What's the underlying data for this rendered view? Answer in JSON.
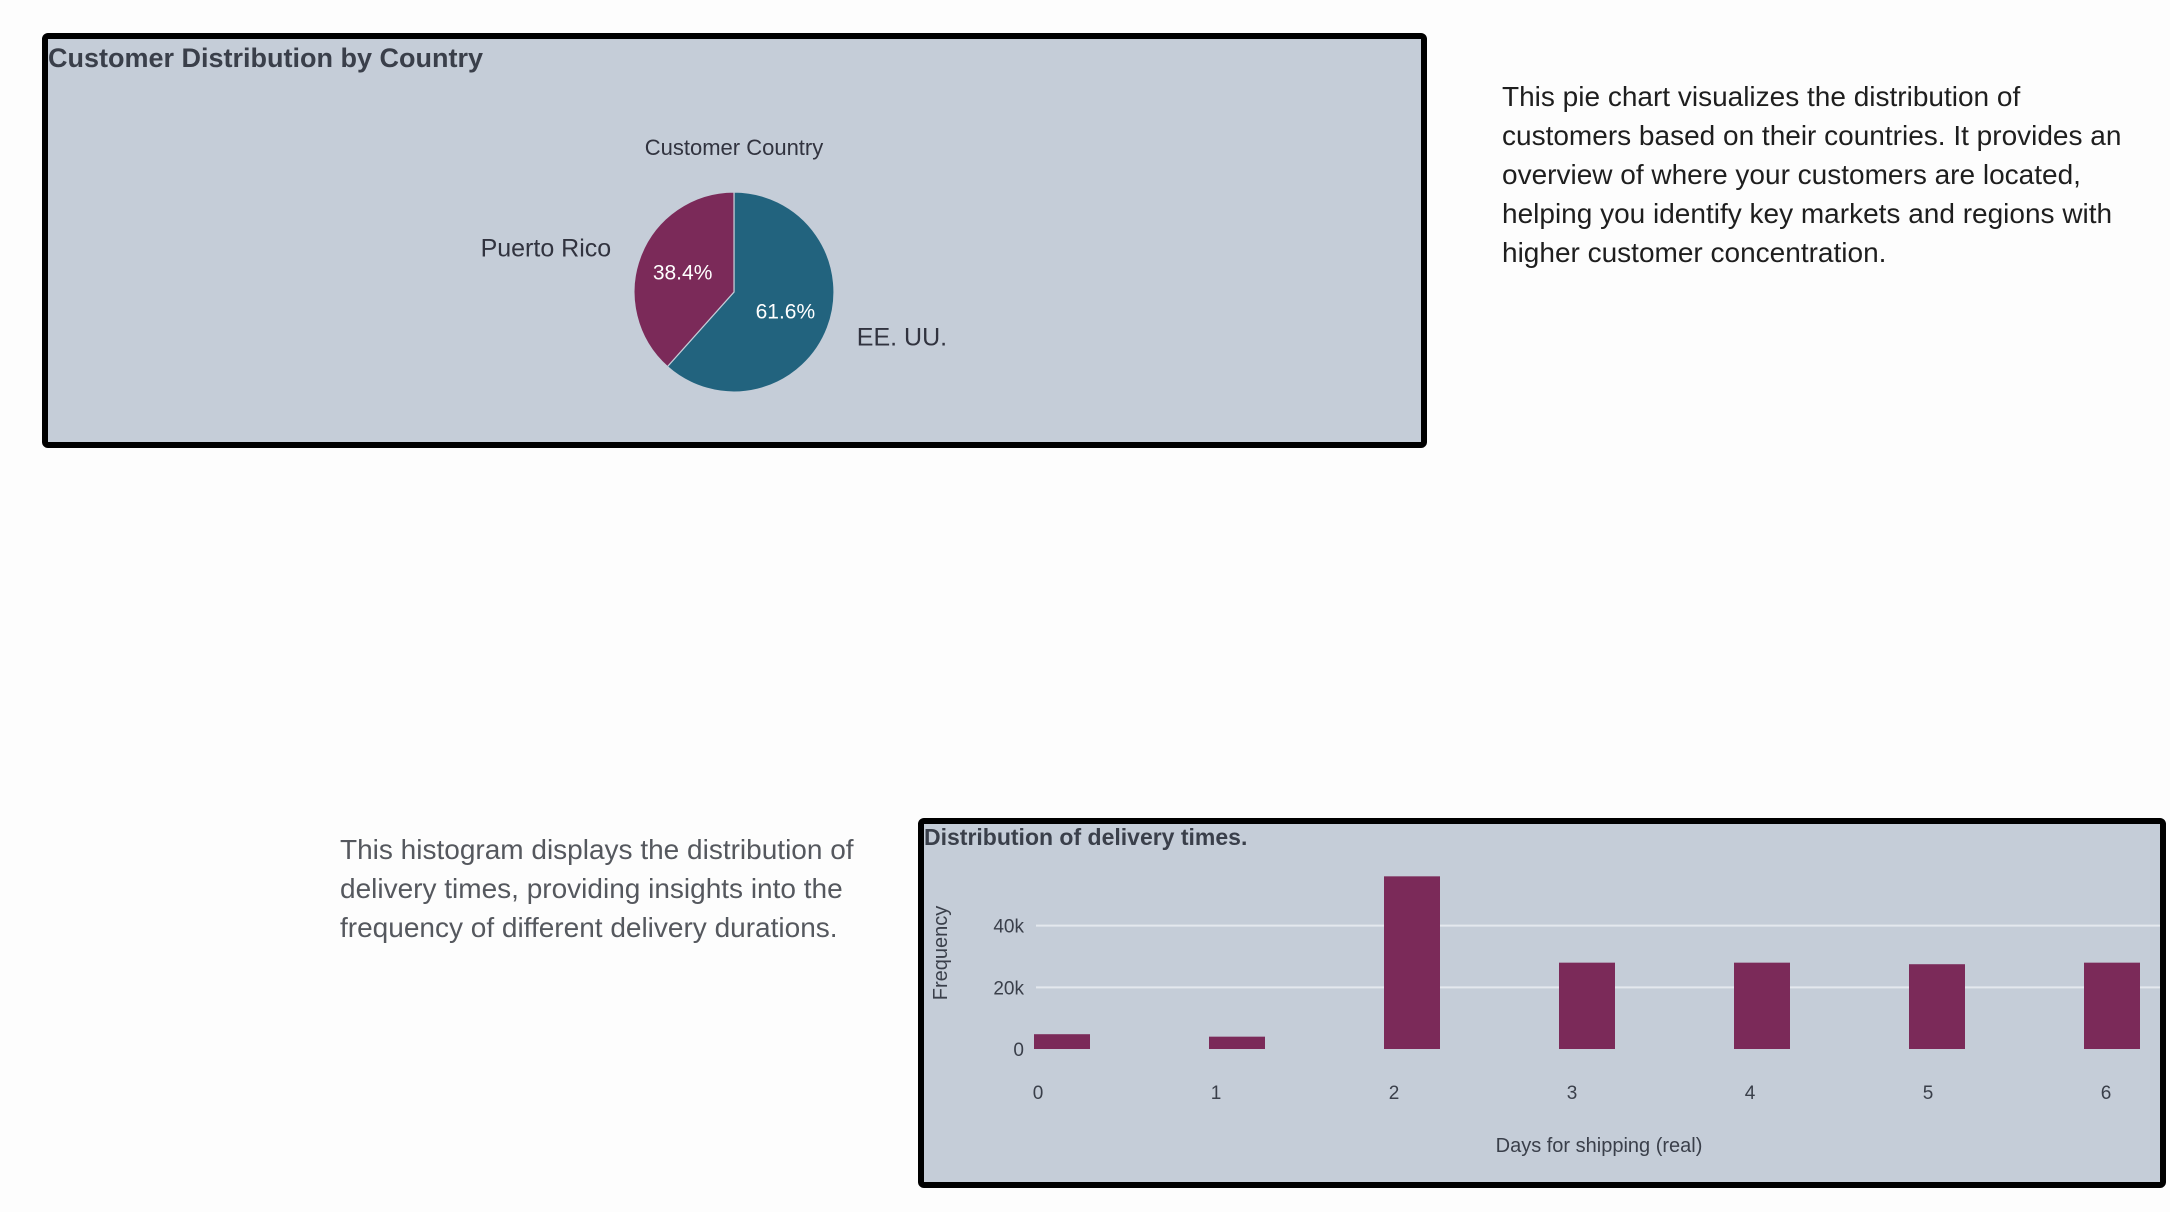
{
  "pie_card": {
    "title": "Customer Distribution by Country",
    "description": "This pie chart visualizes the distribution of customers based on their countries. It provides an overview of where your customers are located, helping you identify key markets and regions with higher customer concentration."
  },
  "hist_card": {
    "title": "Distribution of delivery times.",
    "description": "This histogram displays the distribution of delivery times, providing insights into the frequency of different delivery durations."
  },
  "colors": {
    "teal": "#22637e",
    "plum": "#7b2a59",
    "grid": "#e4e8ee",
    "text": "#3a3f4a"
  },
  "chart_data": [
    {
      "type": "pie",
      "title": "Customer Country",
      "slices": [
        {
          "label": "EE. UU.",
          "value": 61.6,
          "display": "61.6%",
          "color": "#22637e"
        },
        {
          "label": "Puerto Rico",
          "value": 38.4,
          "display": "38.4%",
          "color": "#7b2a59"
        }
      ]
    },
    {
      "type": "bar",
      "title": "Distribution of delivery times.",
      "xlabel": "Days for shipping (real)",
      "ylabel": "Frequency",
      "categories": [
        "0",
        "1",
        "2",
        "3",
        "4",
        "5",
        "6"
      ],
      "values": [
        4800,
        4000,
        56000,
        28000,
        28000,
        27500,
        28000
      ],
      "yticks": [
        0,
        20000,
        40000
      ],
      "ytick_labels": [
        "0",
        "20k",
        "40k"
      ],
      "ylim": [
        0,
        60000
      ]
    }
  ]
}
